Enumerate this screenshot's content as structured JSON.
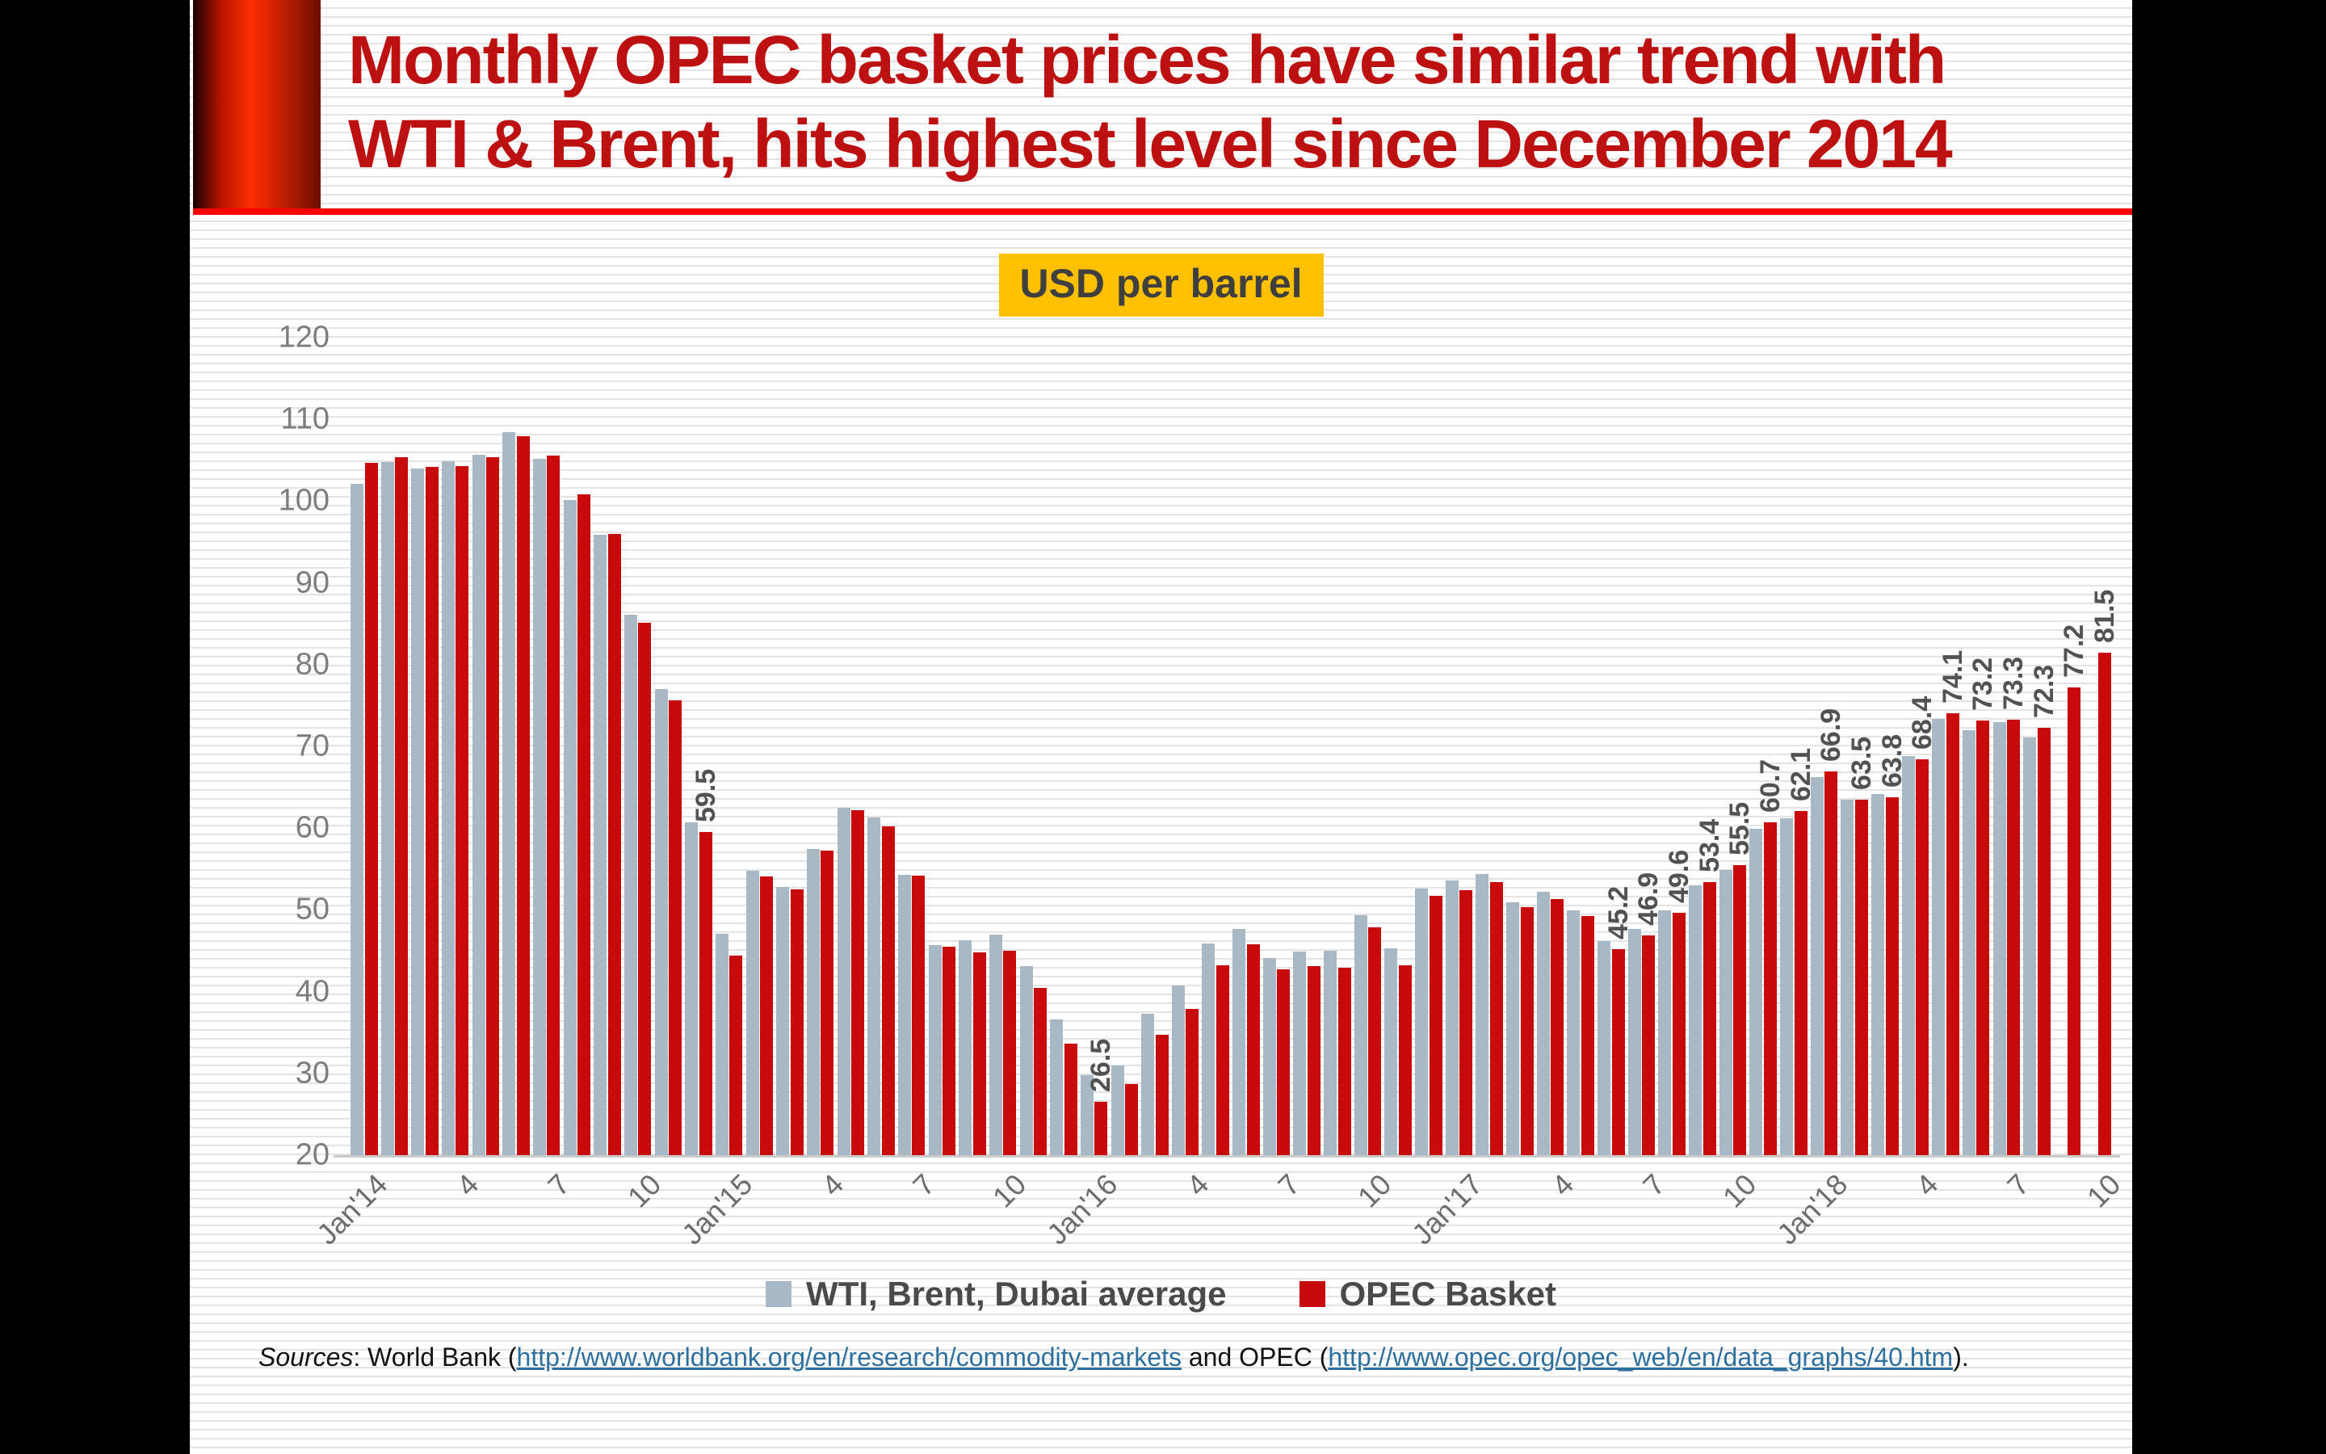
{
  "slide": {
    "title_line1": "Monthly OPEC basket prices have similar trend with",
    "title_line2": "WTI & Brent, hits highest level since December 2014",
    "unit_badge": "USD per barrel",
    "legend": [
      {
        "label": "WTI, Brent, Dubai average",
        "color": "#a9b8c5"
      },
      {
        "label": "OPEC Basket",
        "color": "#c90a0a"
      }
    ],
    "sources": {
      "prefix_italic": "Sources",
      "segment1": ": World Bank (",
      "link1": "http://www.worldbank.org/en/research/commodity-markets",
      "segment2": " and OPEC (",
      "link2": "http://www.opec.org/opec_web/en/data_graphs/40.htm",
      "suffix": ")."
    }
  },
  "colors": {
    "title_red": "#bd1010",
    "rule_red": "#fe0100",
    "badge_yellow": "#ffc000",
    "bar_gray": "#a9b8c5",
    "bar_red": "#c90a0a",
    "axis_text": "#7d7d7d",
    "label_text": "#525252",
    "link_blue": "#2d6f9e"
  },
  "chart_data": {
    "type": "bar",
    "title": "USD per barrel",
    "ylabel": "USD per barrel",
    "xlabel": "",
    "ylim": [
      20,
      120
    ],
    "y_ticks": [
      120,
      110,
      100,
      90,
      80,
      70,
      60,
      50,
      40,
      30,
      20
    ],
    "grid": false,
    "legend_position": "bottom",
    "categories": [
      "Jan'14",
      "Feb'14",
      "Mar'14",
      "Apr'14",
      "May'14",
      "Jun'14",
      "Jul'14",
      "Aug'14",
      "Sep'14",
      "Oct'14",
      "Nov'14",
      "Dec'14",
      "Jan'15",
      "Feb'15",
      "Mar'15",
      "Apr'15",
      "May'15",
      "Jun'15",
      "Jul'15",
      "Aug'15",
      "Sep'15",
      "Oct'15",
      "Nov'15",
      "Dec'15",
      "Jan'16",
      "Feb'16",
      "Mar'16",
      "Apr'16",
      "May'16",
      "Jun'16",
      "Jul'16",
      "Aug'16",
      "Sep'16",
      "Oct'16",
      "Nov'16",
      "Dec'16",
      "Jan'17",
      "Feb'17",
      "Mar'17",
      "Apr'17",
      "May'17",
      "Jun'17",
      "Jul'17",
      "Aug'17",
      "Sep'17",
      "Oct'17",
      "Nov'17",
      "Dec'17",
      "Jan'18",
      "Feb'18",
      "Mar'18",
      "Apr'18",
      "May'18",
      "Jun'18",
      "Jul'18",
      "Aug'18",
      "Sep'18",
      "Oct'18"
    ],
    "x_tick_positions": [
      0,
      3,
      6,
      9,
      12,
      15,
      18,
      21,
      24,
      27,
      30,
      33,
      36,
      39,
      42,
      45,
      48,
      51,
      54,
      57
    ],
    "x_tick_labels": [
      "Jan'14",
      "4",
      "7",
      "10",
      "Jan'15",
      "4",
      "7",
      "10",
      "Jan'16",
      "4",
      "7",
      "10",
      "Jan'17",
      "4",
      "7",
      "10",
      "Jan'18",
      "4",
      "7",
      "10"
    ],
    "series": [
      {
        "name": "WTI, Brent, Dubai average",
        "color": "#a9b8c5",
        "values": [
          102.1,
          104.8,
          104.0,
          104.9,
          105.7,
          108.4,
          105.2,
          100.1,
          95.9,
          86.1,
          77.0,
          60.7,
          47.1,
          54.8,
          52.8,
          57.5,
          62.5,
          61.3,
          54.3,
          45.7,
          46.3,
          47.0,
          43.1,
          36.6,
          29.8,
          31.0,
          37.3,
          40.8,
          45.9,
          47.7,
          44.1,
          44.9,
          45.0,
          49.3,
          45.3,
          52.6,
          53.6,
          54.4,
          50.9,
          52.2,
          49.9,
          46.2,
          47.7,
          49.9,
          53.0,
          54.9,
          59.9,
          61.2,
          66.2,
          63.5,
          64.2,
          68.8,
          73.4,
          72.0,
          73.0,
          71.1,
          null,
          null
        ]
      },
      {
        "name": "OPEC Basket",
        "color": "#c90a0a",
        "values": [
          104.7,
          105.4,
          104.2,
          104.3,
          105.4,
          107.9,
          105.6,
          100.8,
          96.0,
          85.1,
          75.6,
          59.5,
          44.4,
          54.1,
          52.5,
          57.3,
          62.2,
          60.2,
          54.2,
          45.5,
          44.8,
          45.0,
          40.5,
          33.6,
          26.5,
          28.7,
          34.7,
          37.9,
          43.2,
          45.8,
          42.7,
          43.1,
          42.9,
          47.9,
          43.2,
          51.7,
          52.4,
          53.4,
          50.3,
          51.3,
          49.2,
          45.2,
          46.9,
          49.6,
          53.4,
          55.5,
          60.7,
          62.1,
          66.9,
          63.5,
          63.8,
          68.4,
          74.1,
          73.2,
          73.3,
          72.3,
          77.2,
          81.5
        ]
      }
    ],
    "labeled_points": [
      {
        "index": 11,
        "label": "59.5"
      },
      {
        "index": 24,
        "label": "26.5"
      },
      {
        "index": 41,
        "label": "45.2"
      },
      {
        "index": 42,
        "label": "46.9"
      },
      {
        "index": 43,
        "label": "49.6"
      },
      {
        "index": 44,
        "label": "53.4"
      },
      {
        "index": 45,
        "label": "55.5"
      },
      {
        "index": 46,
        "label": "60.7"
      },
      {
        "index": 47,
        "label": "62.1"
      },
      {
        "index": 48,
        "label": "66.9"
      },
      {
        "index": 49,
        "label": "63.5"
      },
      {
        "index": 50,
        "label": "63.8"
      },
      {
        "index": 51,
        "label": "68.4"
      },
      {
        "index": 52,
        "label": "74.1"
      },
      {
        "index": 53,
        "label": "73.2"
      },
      {
        "index": 54,
        "label": "73.3"
      },
      {
        "index": 55,
        "label": "72.3"
      },
      {
        "index": 56,
        "label": "77.2"
      },
      {
        "index": 57,
        "label": "81.5"
      }
    ]
  }
}
